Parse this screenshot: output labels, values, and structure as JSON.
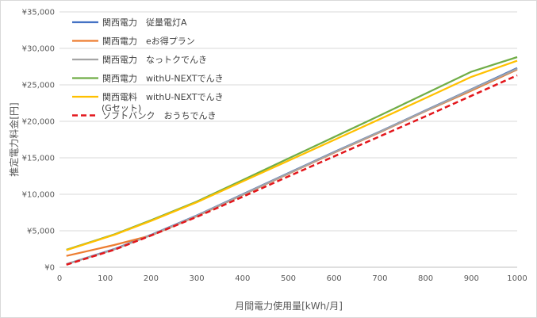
{
  "chart_data": {
    "type": "line",
    "title": "",
    "xlabel": "月間電力使用量[kWh/月]",
    "ylabel": "推定電力料金[円]",
    "xlim": [
      0,
      1000
    ],
    "ylim": [
      0,
      35000
    ],
    "x_ticks": [
      "0",
      "100",
      "200",
      "300",
      "400",
      "500",
      "600",
      "700",
      "800",
      "900",
      "1000"
    ],
    "y_ticks": [
      "¥0",
      "¥5,000",
      "¥10,000",
      "¥15,000",
      "¥20,000",
      "¥25,000",
      "¥30,000",
      "¥35,000"
    ],
    "grid": "horizontal",
    "legend_position": "top-left-inside",
    "series": [
      {
        "name": "関西電力　従量電灯A",
        "color": "#4472C4",
        "dash": "solid",
        "points": [
          [
            15,
            420
          ],
          [
            120,
            2500
          ],
          [
            200,
            4450
          ],
          [
            300,
            7100
          ],
          [
            400,
            10000
          ],
          [
            500,
            12900
          ],
          [
            600,
            15800
          ],
          [
            700,
            18600
          ],
          [
            800,
            21500
          ],
          [
            900,
            24400
          ],
          [
            1000,
            27300
          ]
        ]
      },
      {
        "name": "関西電力　eお得プラン",
        "color": "#ED7D31",
        "dash": "solid",
        "points": [
          [
            15,
            1550
          ],
          [
            120,
            3050
          ],
          [
            200,
            4350
          ],
          [
            300,
            7000
          ],
          [
            400,
            9900
          ],
          [
            500,
            12800
          ],
          [
            600,
            15700
          ],
          [
            700,
            18500
          ],
          [
            800,
            21400
          ],
          [
            900,
            24200
          ],
          [
            1000,
            27100
          ]
        ]
      },
      {
        "name": "関西電力　なっトクでんき",
        "color": "#A5A5A5",
        "dash": "solid",
        "points": [
          [
            15,
            420
          ],
          [
            120,
            2450
          ],
          [
            200,
            4400
          ],
          [
            300,
            7050
          ],
          [
            400,
            9950
          ],
          [
            500,
            12850
          ],
          [
            600,
            15750
          ],
          [
            700,
            18550
          ],
          [
            800,
            21450
          ],
          [
            900,
            24350
          ],
          [
            1000,
            27200
          ]
        ]
      },
      {
        "name": "関西電力　withU-NEXTでんき",
        "color": "#70AD47",
        "dash": "solid",
        "points": [
          [
            15,
            2400
          ],
          [
            120,
            4500
          ],
          [
            200,
            6450
          ],
          [
            300,
            9000
          ],
          [
            400,
            11950
          ],
          [
            500,
            14900
          ],
          [
            600,
            17850
          ],
          [
            700,
            20800
          ],
          [
            800,
            23800
          ],
          [
            900,
            26800
          ],
          [
            1000,
            28800
          ]
        ]
      },
      {
        "name": "関西電料　withU-NEXTでんき（Gセット）",
        "name_lines": [
          "関西電料　withU-NEXTでんき",
          "(Gセット)"
        ],
        "color": "#FFC000",
        "dash": "solid",
        "points": [
          [
            15,
            2350
          ],
          [
            120,
            4450
          ],
          [
            200,
            6350
          ],
          [
            300,
            8900
          ],
          [
            400,
            11750
          ],
          [
            500,
            14600
          ],
          [
            600,
            17450
          ],
          [
            700,
            20300
          ],
          [
            800,
            23200
          ],
          [
            900,
            26100
          ],
          [
            1000,
            28300
          ]
        ]
      },
      {
        "name": "ソフトバンク　おうちでんき",
        "color": "#E3161B",
        "dash": "dashed",
        "points": [
          [
            15,
            350
          ],
          [
            120,
            2400
          ],
          [
            200,
            4350
          ],
          [
            300,
            6900
          ],
          [
            400,
            9650
          ],
          [
            500,
            12450
          ],
          [
            600,
            15200
          ],
          [
            700,
            17950
          ],
          [
            800,
            20700
          ],
          [
            900,
            23500
          ],
          [
            1000,
            26300
          ]
        ]
      }
    ]
  }
}
